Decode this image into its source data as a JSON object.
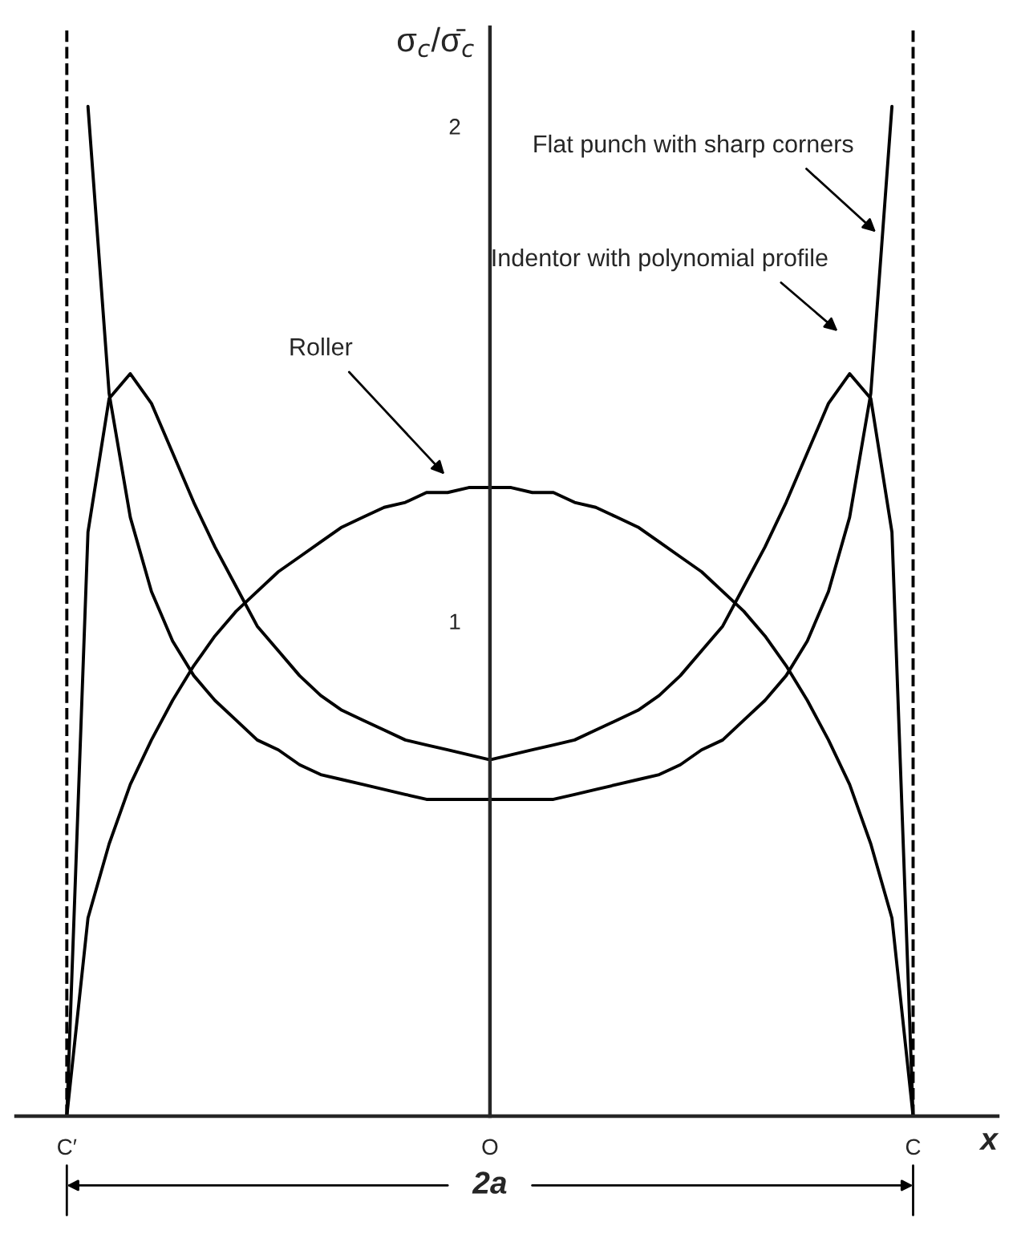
{
  "chart_data": {
    "type": "line",
    "ylabel": "σ$_{c}$/σ̄$_{c}$",
    "xlabel": "x",
    "categories": [
      "C′",
      null,
      null,
      null,
      null,
      null,
      null,
      null,
      null,
      null,
      null,
      null,
      null,
      null,
      null,
      null,
      null,
      null,
      null,
      null,
      "O",
      null,
      null,
      null,
      null,
      null,
      null,
      null,
      null,
      null,
      null,
      null,
      null,
      null,
      null,
      null,
      null,
      null,
      null,
      null,
      "C"
    ],
    "ylim": [
      0,
      2.2
    ],
    "yticks": [
      1,
      2
    ],
    "grid": false,
    "legend": false,
    "marker": "none",
    "line_style": "solid",
    "series": [
      {
        "color": "#000000",
        "values": [
          null,
          2.04,
          1.46,
          1.21,
          1.06,
          0.96,
          0.89,
          0.84,
          0.8,
          0.76,
          0.74,
          0.71,
          0.69,
          0.68,
          0.67,
          0.66,
          0.65,
          0.64,
          0.64,
          0.64,
          0.64,
          0.64,
          0.64,
          0.64,
          0.65,
          0.66,
          0.67,
          0.68,
          0.69,
          0.71,
          0.74,
          0.76,
          0.8,
          0.84,
          0.89,
          0.96,
          1.06,
          1.21,
          1.46,
          2.04,
          null
        ]
      },
      {
        "color": "#000000",
        "values": [
          0,
          1.18,
          1.45,
          1.5,
          1.44,
          1.34,
          1.24,
          1.15,
          1.07,
          0.99,
          0.94,
          0.89,
          0.85,
          0.82,
          0.8,
          0.78,
          0.76,
          0.75,
          0.74,
          0.73,
          0.72,
          0.73,
          0.74,
          0.75,
          0.76,
          0.78,
          0.8,
          0.82,
          0.85,
          0.89,
          0.94,
          0.99,
          1.07,
          1.15,
          1.24,
          1.34,
          1.44,
          1.5,
          1.45,
          1.18,
          0
        ]
      },
      {
        "color": "#000000",
        "values": [
          0,
          0.4,
          0.55,
          0.67,
          0.76,
          0.84,
          0.91,
          0.97,
          1.02,
          1.06,
          1.1,
          1.13,
          1.16,
          1.19,
          1.21,
          1.23,
          1.24,
          1.26,
          1.26,
          1.27,
          1.27,
          1.27,
          1.26,
          1.26,
          1.24,
          1.23,
          1.21,
          1.19,
          1.16,
          1.13,
          1.1,
          1.06,
          1.02,
          0.97,
          0.91,
          0.84,
          0.76,
          0.67,
          0.55,
          0.4,
          0
        ]
      }
    ],
    "ref_lines": [
      {
        "axis": "x",
        "value": "C′",
        "label": null,
        "line_style": "dashed",
        "color": "#000000"
      },
      {
        "axis": "x",
        "value": "C",
        "label": null,
        "line_style": "dashed",
        "color": "#000000"
      }
    ],
    "annotations": [
      "Flat punch with sharp corners",
      "Indentor with polynomial profile",
      "Roller",
      "2a"
    ]
  }
}
